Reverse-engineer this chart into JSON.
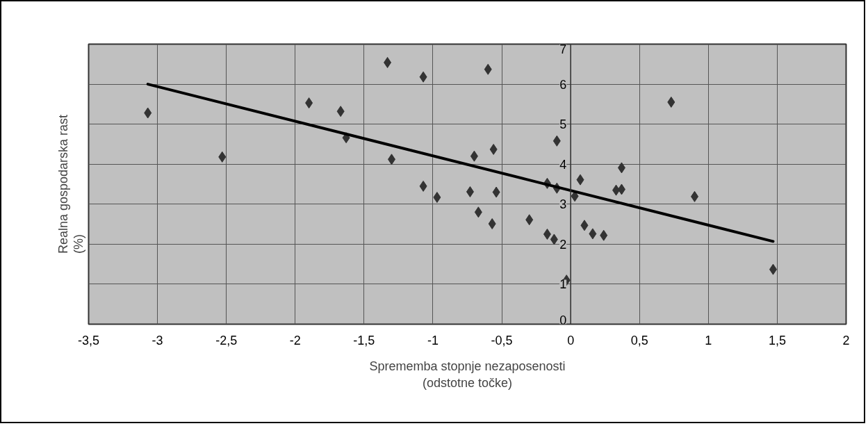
{
  "chart_data": {
    "type": "scatter",
    "xlabel": "Sprememba stopnje nezaposenosti\n(odstotne točke)",
    "ylabel": "Realna gospodarska rast\n(%)",
    "xlim": [
      -3.5,
      2
    ],
    "xticks": [
      {
        "value": -3.5,
        "label": "-3,5"
      },
      {
        "value": -3,
        "label": "-3"
      },
      {
        "value": -2.5,
        "label": "-2,5"
      },
      {
        "value": -2,
        "label": "-2"
      },
      {
        "value": -1.5,
        "label": "-1,5"
      },
      {
        "value": -1,
        "label": "-1"
      },
      {
        "value": -0.5,
        "label": "-0,5"
      },
      {
        "value": 0,
        "label": "0"
      },
      {
        "value": 0.5,
        "label": "0,5"
      },
      {
        "value": 1,
        "label": "1"
      },
      {
        "value": 1.5,
        "label": "1,5"
      },
      {
        "value": 2,
        "label": "2"
      }
    ],
    "ylim": [
      0,
      7
    ],
    "yticks": [
      0,
      1,
      2,
      3,
      4,
      5,
      6,
      7
    ],
    "grid": true,
    "series": [
      {
        "marker": "diamond",
        "color": "#333333",
        "x": [
          -3.07,
          -2.53,
          -1.9,
          -1.67,
          -1.63,
          -1.33,
          -1.3,
          -1.07,
          -1.07,
          -0.97,
          -0.6,
          -0.7,
          -0.56,
          -0.73,
          -0.54,
          -0.67,
          -0.57,
          -0.3,
          -0.17,
          -0.1,
          -0.1,
          -0.17,
          -0.12,
          -0.03,
          0.03,
          0.07,
          0.1,
          0.16,
          0.24,
          0.33,
          0.37,
          0.37,
          0.73,
          0.9,
          1.47
        ],
        "values": [
          5.28,
          4.18,
          5.53,
          5.32,
          4.66,
          6.54,
          4.12,
          6.18,
          3.45,
          3.17,
          6.37,
          4.2,
          4.37,
          3.31,
          3.3,
          2.8,
          2.51,
          2.61,
          3.52,
          4.58,
          3.4,
          2.25,
          2.12,
          1.1,
          3.2,
          3.61,
          2.47,
          2.26,
          2.22,
          3.35,
          3.37,
          3.91,
          5.55,
          3.19,
          1.37
        ]
      },
      {
        "type": "line",
        "color": "#000000",
        "x": [
          -3.07,
          1.47
        ],
        "values": [
          6.0,
          2.07
        ],
        "line_style": "solid"
      }
    ]
  }
}
